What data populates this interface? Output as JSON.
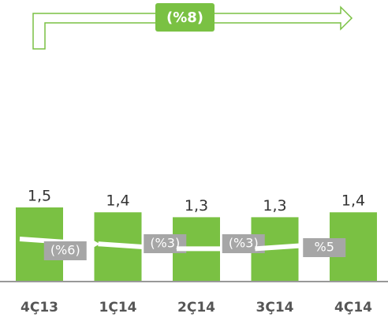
{
  "chart_data": {
    "type": "bar",
    "categories": [
      "4Ç13",
      "1Ç14",
      "2Ç14",
      "3Ç14",
      "4Ç14"
    ],
    "values": [
      1.5,
      1.4,
      1.3,
      1.3,
      1.4
    ],
    "value_labels": [
      "1,5",
      "1,4",
      "1,3",
      "1,3",
      "1,4"
    ],
    "color": "#7ac143",
    "total_change": "(%8)",
    "changes": [
      "(%6)",
      "(%3)",
      "(%3)",
      "%5"
    ]
  }
}
